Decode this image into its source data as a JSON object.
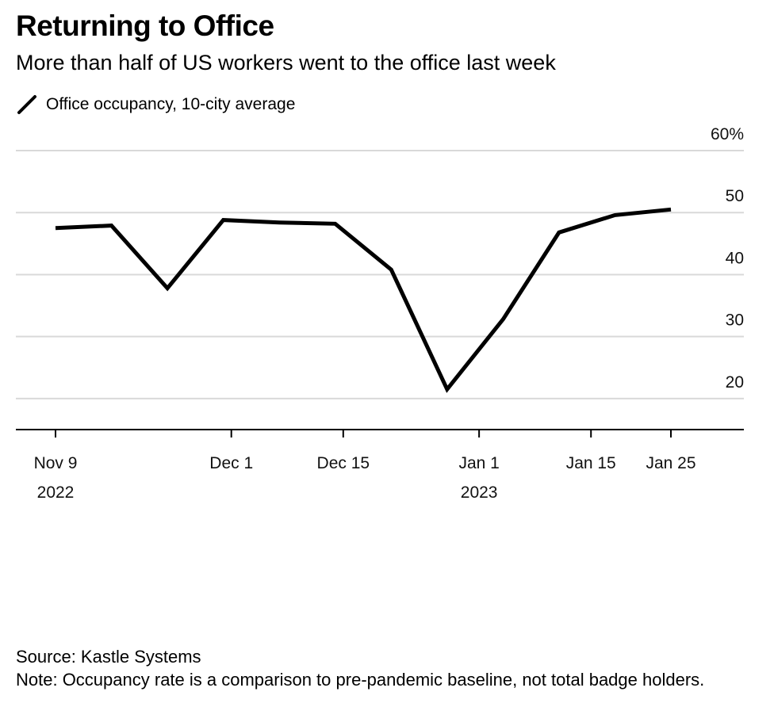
{
  "chart_data": {
    "type": "line",
    "title": "Returning to Office",
    "subtitle": "More than half of US workers went to the office last week",
    "series": [
      {
        "name": "Office occupancy, 10-city average",
        "x": [
          "2022-11-09",
          "2022-11-16",
          "2022-11-23",
          "2022-11-30",
          "2022-12-07",
          "2022-12-14",
          "2022-12-21",
          "2022-12-28",
          "2023-01-04",
          "2023-01-11",
          "2023-01-18",
          "2023-01-25"
        ],
        "values": [
          47.5,
          47.9,
          37.8,
          48.8,
          48.4,
          48.2,
          40.8,
          21.5,
          32.8,
          46.8,
          49.6,
          50.5
        ]
      }
    ],
    "x_range": [
      "2022-11-06",
      "2023-02-03"
    ],
    "ylim": [
      15,
      60
    ],
    "y_ticks": [
      {
        "value": 60,
        "label": "60%"
      },
      {
        "value": 50,
        "label": "50"
      },
      {
        "value": 40,
        "label": "40"
      },
      {
        "value": 30,
        "label": "30"
      },
      {
        "value": 20,
        "label": "20"
      }
    ],
    "x_ticks": [
      {
        "date": "2022-11-09",
        "label": "Nov 9",
        "sublabel": "2022"
      },
      {
        "date": "2022-12-01",
        "label": "Dec 1",
        "sublabel": ""
      },
      {
        "date": "2022-12-15",
        "label": "Dec 15",
        "sublabel": ""
      },
      {
        "date": "2023-01-01",
        "label": "Jan 1",
        "sublabel": "2023"
      },
      {
        "date": "2023-01-15",
        "label": "Jan 15",
        "sublabel": ""
      },
      {
        "date": "2023-01-25",
        "label": "Jan 25",
        "sublabel": ""
      }
    ],
    "grid": true,
    "legend_position": "top-left",
    "xlabel": "",
    "ylabel": ""
  },
  "footer": {
    "source": "Source: Kastle Systems",
    "note": "Note: Occupancy rate is a comparison to pre-pandemic baseline, not total badge holders."
  },
  "colors": {
    "line": "#000000",
    "grid": "#d9d9d9",
    "axis": "#000000"
  }
}
